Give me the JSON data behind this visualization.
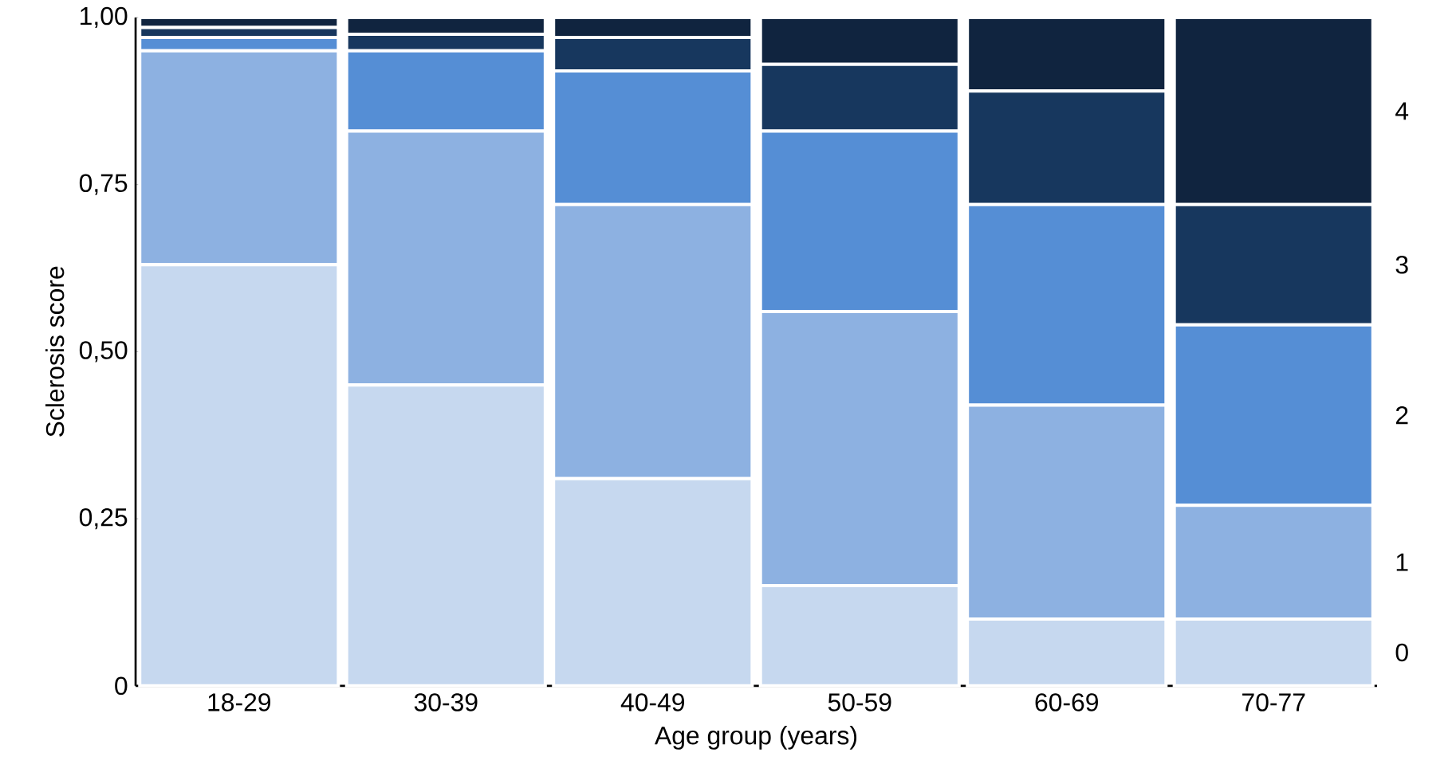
{
  "chart_data": {
    "type": "bar",
    "stacked": true,
    "xlabel": "Age group (years)",
    "ylabel": "Sclerosis score",
    "categories": [
      "18-29",
      "30-39",
      "40-49",
      "50-59",
      "60-69",
      "70-77"
    ],
    "series": [
      {
        "name": "0",
        "color": "#c6d8ef",
        "values": [
          0.63,
          0.45,
          0.31,
          0.15,
          0.1,
          0.1
        ]
      },
      {
        "name": "1",
        "color": "#8db1e1",
        "values": [
          0.32,
          0.38,
          0.41,
          0.41,
          0.32,
          0.17
        ]
      },
      {
        "name": "2",
        "color": "#558ed5",
        "values": [
          0.02,
          0.12,
          0.2,
          0.27,
          0.3,
          0.27
        ]
      },
      {
        "name": "3",
        "color": "#17375e",
        "values": [
          0.015,
          0.025,
          0.05,
          0.1,
          0.17,
          0.18
        ]
      },
      {
        "name": "4",
        "color": "#10243f",
        "values": [
          0.015,
          0.025,
          0.03,
          0.07,
          0.11,
          0.28
        ]
      }
    ],
    "ylim": [
      0,
      1
    ],
    "yticks": [
      0,
      {
        "value": 0.25,
        "label": "0,25"
      },
      {
        "value": 0.5,
        "label": "0,50"
      },
      {
        "value": 0.75,
        "label": "0,75"
      },
      {
        "value": 1,
        "label": "1,00"
      }
    ]
  }
}
